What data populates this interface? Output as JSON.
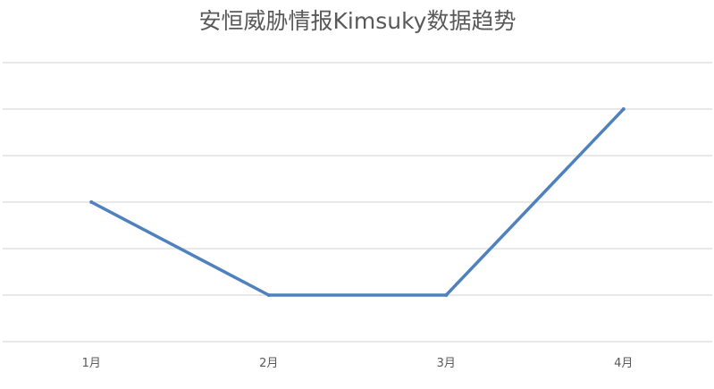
{
  "chart_data": {
    "type": "line",
    "title": "安恒威胁情报Kimsuky数据趋势",
    "xlabel": "",
    "ylabel": "",
    "categories": [
      "1月",
      "2月",
      "3月",
      "4月"
    ],
    "series": [
      {
        "values": [
          3,
          1,
          1,
          5
        ]
      }
    ],
    "ylim": [
      0,
      6
    ],
    "grid": true,
    "y_tick_labels_visible": false,
    "legend": "none",
    "colors": {
      "series": "#4F81BD",
      "gridline": "#D9D9D9",
      "text": "#595959"
    }
  }
}
